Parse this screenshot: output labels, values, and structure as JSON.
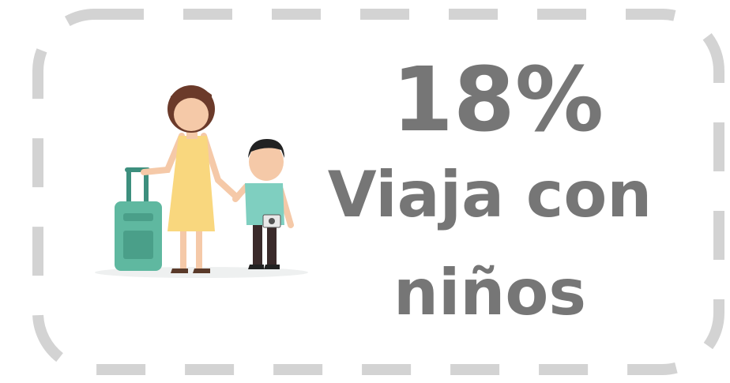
{
  "stat": {
    "figure": "18%",
    "lines": [
      "Viaja con",
      "niños"
    ]
  }
}
